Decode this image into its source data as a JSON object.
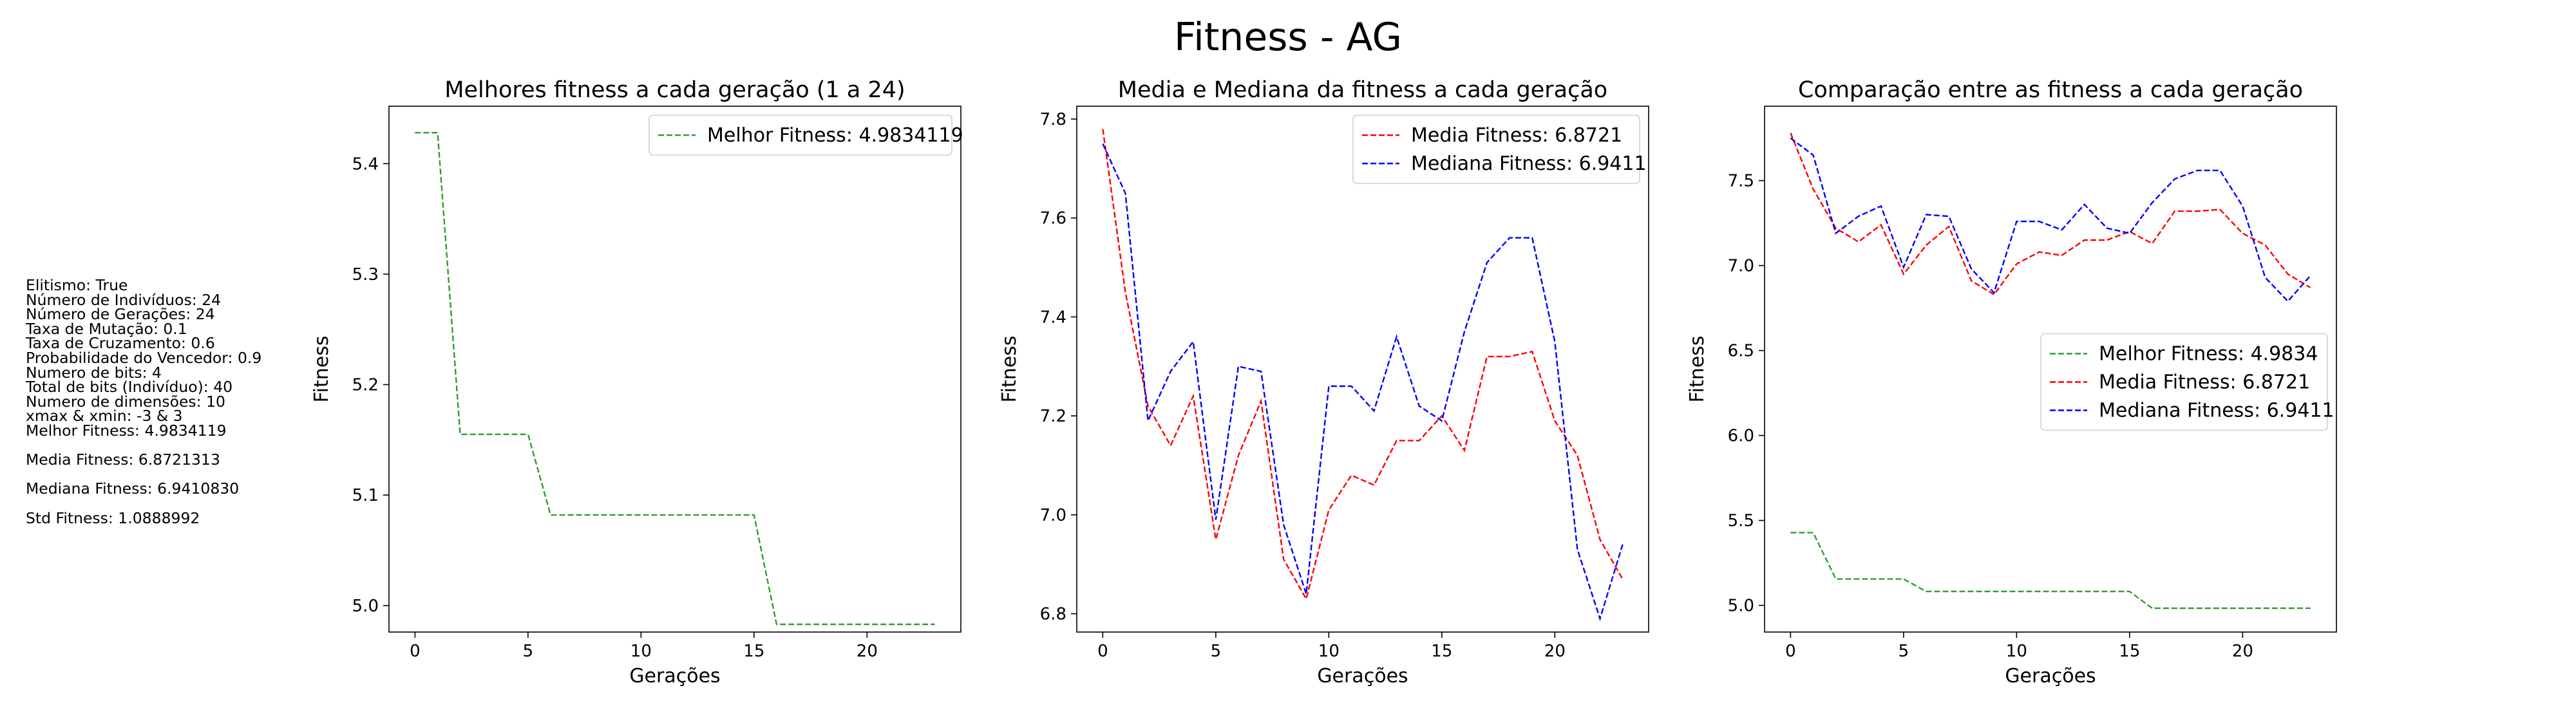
{
  "figure_title": "Fitness - AG",
  "info_lines": [
    "Elitismo: True",
    "Número de Indivíduos: 24",
    "Número de Gerações: 24",
    "Taxa de Mutação: 0.1",
    "Taxa de Cruzamento: 0.6",
    "Probabilidade do Vencedor: 0.9",
    "Numero de bits: 4",
    "Total de bits (Indivíduo): 40",
    "Numero de dimensões: 10",
    "xmax & xmin: -3 & 3",
    "Melhor Fitness: 4.9834119",
    "",
    "Media Fitness: 6.8721313",
    "",
    "Mediana Fitness: 6.9410830",
    "",
    "Std Fitness: 1.0888992"
  ],
  "colors": {
    "best": "#2ca02c",
    "mean": "#ff0000",
    "median": "#0000ff",
    "axes": "#000000"
  },
  "chart_data": [
    {
      "type": "line",
      "title": "Melhores fitness a cada geração (1 a 24)",
      "xlabel": "Gerações",
      "ylabel": "Fitness",
      "xlim": [
        -1.15,
        24.15
      ],
      "ylim": [
        4.976,
        5.452
      ],
      "xticks": [
        0,
        5,
        10,
        15,
        20
      ],
      "yticks": [
        5.0,
        5.1,
        5.2,
        5.3,
        5.4
      ],
      "ytick_labels": [
        "5.0",
        "5.1",
        "5.2",
        "5.3",
        "5.4"
      ],
      "legend_position": "upper right",
      "x": [
        0,
        1,
        2,
        3,
        4,
        5,
        6,
        7,
        8,
        9,
        10,
        11,
        12,
        13,
        14,
        15,
        16,
        17,
        18,
        19,
        20,
        21,
        22,
        23
      ],
      "series": [
        {
          "name": "Melhor Fitness: 4.9834119",
          "color_key": "best",
          "values": [
            5.428,
            5.428,
            5.155,
            5.155,
            5.155,
            5.155,
            5.082,
            5.082,
            5.082,
            5.082,
            5.082,
            5.082,
            5.082,
            5.082,
            5.082,
            5.082,
            4.983,
            4.983,
            4.983,
            4.983,
            4.983,
            4.983,
            4.983,
            4.983
          ]
        }
      ]
    },
    {
      "type": "line",
      "title": "Media e Mediana da fitness a cada geração",
      "xlabel": "Gerações",
      "ylabel": "Fitness",
      "xlim": [
        -1.15,
        24.15
      ],
      "ylim": [
        6.763,
        7.826
      ],
      "xticks": [
        0,
        5,
        10,
        15,
        20
      ],
      "yticks": [
        6.8,
        7.0,
        7.2,
        7.4,
        7.6,
        7.8
      ],
      "ytick_labels": [
        "6.8",
        "7.0",
        "7.2",
        "7.4",
        "7.6",
        "7.8"
      ],
      "legend_position": "upper right",
      "x": [
        0,
        1,
        2,
        3,
        4,
        5,
        6,
        7,
        8,
        9,
        10,
        11,
        12,
        13,
        14,
        15,
        16,
        17,
        18,
        19,
        20,
        21,
        22,
        23
      ],
      "series": [
        {
          "name": "Media Fitness: 6.8721",
          "color_key": "mean",
          "values": [
            7.78,
            7.45,
            7.22,
            7.14,
            7.24,
            6.95,
            7.12,
            7.23,
            6.91,
            6.83,
            7.01,
            7.08,
            7.06,
            7.15,
            7.15,
            7.2,
            7.13,
            7.32,
            7.32,
            7.33,
            7.19,
            7.12,
            6.95,
            6.87
          ]
        },
        {
          "name": "Mediana Fitness: 6.9411",
          "color_key": "median",
          "values": [
            7.75,
            7.65,
            7.19,
            7.29,
            7.35,
            6.99,
            7.3,
            7.29,
            6.98,
            6.84,
            7.26,
            7.26,
            7.21,
            7.36,
            7.22,
            7.19,
            7.37,
            7.51,
            7.56,
            7.56,
            7.35,
            6.93,
            6.79,
            6.94
          ]
        }
      ]
    },
    {
      "type": "line",
      "title": "Comparação entre as fitness a cada geração",
      "xlabel": "Gerações",
      "ylabel": "Fitness",
      "xlim": [
        -1.15,
        24.15
      ],
      "ylim": [
        4.843,
        7.938
      ],
      "xticks": [
        0,
        5,
        10,
        15,
        20
      ],
      "yticks": [
        5.0,
        5.5,
        6.0,
        6.5,
        7.0,
        7.5
      ],
      "ytick_labels": [
        "5.0",
        "5.5",
        "6.0",
        "6.5",
        "7.0",
        "7.5"
      ],
      "legend_position": "center right",
      "x": [
        0,
        1,
        2,
        3,
        4,
        5,
        6,
        7,
        8,
        9,
        10,
        11,
        12,
        13,
        14,
        15,
        16,
        17,
        18,
        19,
        20,
        21,
        22,
        23
      ],
      "series": [
        {
          "name": "Melhor Fitness: 4.9834",
          "color_key": "best",
          "values": [
            5.428,
            5.428,
            5.155,
            5.155,
            5.155,
            5.155,
            5.082,
            5.082,
            5.082,
            5.082,
            5.082,
            5.082,
            5.082,
            5.082,
            5.082,
            5.082,
            4.983,
            4.983,
            4.983,
            4.983,
            4.983,
            4.983,
            4.983,
            4.983
          ]
        },
        {
          "name": "Media Fitness: 6.8721",
          "color_key": "mean",
          "values": [
            7.78,
            7.45,
            7.22,
            7.14,
            7.24,
            6.95,
            7.12,
            7.23,
            6.91,
            6.83,
            7.01,
            7.08,
            7.06,
            7.15,
            7.15,
            7.2,
            7.13,
            7.32,
            7.32,
            7.33,
            7.19,
            7.12,
            6.95,
            6.87
          ]
        },
        {
          "name": "Mediana Fitness: 6.9411",
          "color_key": "median",
          "values": [
            7.75,
            7.65,
            7.19,
            7.29,
            7.35,
            6.99,
            7.3,
            7.29,
            6.98,
            6.84,
            7.26,
            7.26,
            7.21,
            7.36,
            7.22,
            7.19,
            7.37,
            7.51,
            7.56,
            7.56,
            7.35,
            6.93,
            6.79,
            6.94
          ]
        }
      ]
    }
  ]
}
